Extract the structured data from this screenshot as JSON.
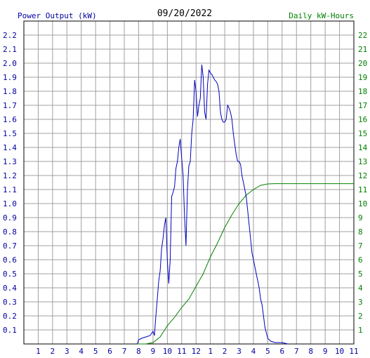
{
  "chart_data": {
    "type": "line",
    "title": "09/20/2022",
    "ylabel_left": "Power Output (kW)",
    "ylabel_right": "Daily kW-Hours",
    "grid": true,
    "ylim_left": [
      0,
      2.3
    ],
    "ylim_right": [
      0,
      23
    ],
    "xlim": [
      0,
      23
    ],
    "x_tick_labels": [
      "1",
      "2",
      "3",
      "4",
      "5",
      "6",
      "7",
      "8",
      "9",
      "10",
      "11",
      "12",
      "1",
      "2",
      "3",
      "4",
      "5",
      "6",
      "7",
      "8",
      "9",
      "10",
      "11"
    ],
    "y_left_tick_labels": [
      "0.1",
      "0.2",
      "0.3",
      "0.4",
      "0.5",
      "0.6",
      "0.7",
      "0.8",
      "0.9",
      "1.0",
      "1.1",
      "1.2",
      "1.3",
      "1.4",
      "1.5",
      "1.6",
      "1.7",
      "1.8",
      "1.9",
      "2.0",
      "2.1",
      "2.2"
    ],
    "y_right_tick_labels": [
      "1",
      "2",
      "3",
      "4",
      "5",
      "6",
      "7",
      "8",
      "9",
      "10",
      "11",
      "12",
      "13",
      "14",
      "15",
      "16",
      "17",
      "18",
      "19",
      "20",
      "21",
      "22"
    ],
    "colors": {
      "power": "#0000c0",
      "energy": "#008000",
      "grid": "#a0a0a0",
      "axis": "#000000"
    },
    "series": [
      {
        "axis": "left",
        "points": [
          [
            7.9,
            0.0
          ],
          [
            8.0,
            0.03
          ],
          [
            8.2,
            0.04
          ],
          [
            8.5,
            0.05
          ],
          [
            8.8,
            0.06
          ],
          [
            9.0,
            0.09
          ],
          [
            9.1,
            0.06
          ],
          [
            9.2,
            0.2
          ],
          [
            9.3,
            0.32
          ],
          [
            9.4,
            0.45
          ],
          [
            9.5,
            0.52
          ],
          [
            9.6,
            0.68
          ],
          [
            9.7,
            0.75
          ],
          [
            9.8,
            0.85
          ],
          [
            9.9,
            0.9
          ],
          [
            10.0,
            0.6
          ],
          [
            10.1,
            0.43
          ],
          [
            10.2,
            0.6
          ],
          [
            10.3,
            1.05
          ],
          [
            10.4,
            1.08
          ],
          [
            10.5,
            1.12
          ],
          [
            10.6,
            1.25
          ],
          [
            10.7,
            1.3
          ],
          [
            10.8,
            1.4
          ],
          [
            10.9,
            1.46
          ],
          [
            11.0,
            1.32
          ],
          [
            11.1,
            1.2
          ],
          [
            11.2,
            0.9
          ],
          [
            11.3,
            0.7
          ],
          [
            11.4,
            1.1
          ],
          [
            11.5,
            1.27
          ],
          [
            11.6,
            1.3
          ],
          [
            11.7,
            1.5
          ],
          [
            11.8,
            1.6
          ],
          [
            11.9,
            1.88
          ],
          [
            12.0,
            1.8
          ],
          [
            12.1,
            1.62
          ],
          [
            12.2,
            1.7
          ],
          [
            12.3,
            1.75
          ],
          [
            12.4,
            1.99
          ],
          [
            12.5,
            1.9
          ],
          [
            12.6,
            1.65
          ],
          [
            12.7,
            1.6
          ],
          [
            12.8,
            1.85
          ],
          [
            12.9,
            1.95
          ],
          [
            13.0,
            1.93
          ],
          [
            13.1,
            1.92
          ],
          [
            13.2,
            1.9
          ],
          [
            13.3,
            1.88
          ],
          [
            13.4,
            1.87
          ],
          [
            13.5,
            1.85
          ],
          [
            13.6,
            1.8
          ],
          [
            13.7,
            1.65
          ],
          [
            13.8,
            1.6
          ],
          [
            13.9,
            1.58
          ],
          [
            14.0,
            1.58
          ],
          [
            14.1,
            1.6
          ],
          [
            14.2,
            1.7
          ],
          [
            14.3,
            1.68
          ],
          [
            14.4,
            1.65
          ],
          [
            14.5,
            1.6
          ],
          [
            14.6,
            1.5
          ],
          [
            14.7,
            1.42
          ],
          [
            14.8,
            1.35
          ],
          [
            14.9,
            1.3
          ],
          [
            15.0,
            1.3
          ],
          [
            15.1,
            1.28
          ],
          [
            15.2,
            1.2
          ],
          [
            15.3,
            1.15
          ],
          [
            15.4,
            1.1
          ],
          [
            15.5,
            1.05
          ],
          [
            15.6,
            0.95
          ],
          [
            15.7,
            0.85
          ],
          [
            15.8,
            0.75
          ],
          [
            15.9,
            0.65
          ],
          [
            16.0,
            0.6
          ],
          [
            16.1,
            0.55
          ],
          [
            16.2,
            0.5
          ],
          [
            16.3,
            0.45
          ],
          [
            16.4,
            0.4
          ],
          [
            16.5,
            0.32
          ],
          [
            16.6,
            0.28
          ],
          [
            16.7,
            0.2
          ],
          [
            16.8,
            0.12
          ],
          [
            16.9,
            0.08
          ],
          [
            17.0,
            0.04
          ],
          [
            17.2,
            0.02
          ],
          [
            17.5,
            0.01
          ],
          [
            18.0,
            0.01
          ],
          [
            18.4,
            0.0
          ]
        ]
      },
      {
        "axis": "right",
        "points": [
          [
            7.9,
            0.0
          ],
          [
            8.5,
            0.0
          ],
          [
            9.0,
            0.1
          ],
          [
            9.5,
            0.5
          ],
          [
            10.0,
            1.3
          ],
          [
            10.5,
            1.9
          ],
          [
            11.0,
            2.6
          ],
          [
            11.5,
            3.2
          ],
          [
            12.0,
            4.1
          ],
          [
            12.5,
            5.0
          ],
          [
            13.0,
            6.2
          ],
          [
            13.5,
            7.2
          ],
          [
            14.0,
            8.3
          ],
          [
            14.5,
            9.2
          ],
          [
            15.0,
            10.0
          ],
          [
            15.5,
            10.6
          ],
          [
            16.0,
            11.0
          ],
          [
            16.5,
            11.3
          ],
          [
            17.0,
            11.4
          ],
          [
            17.5,
            11.42
          ],
          [
            18.0,
            11.42
          ],
          [
            23.0,
            11.42
          ]
        ]
      }
    ]
  }
}
